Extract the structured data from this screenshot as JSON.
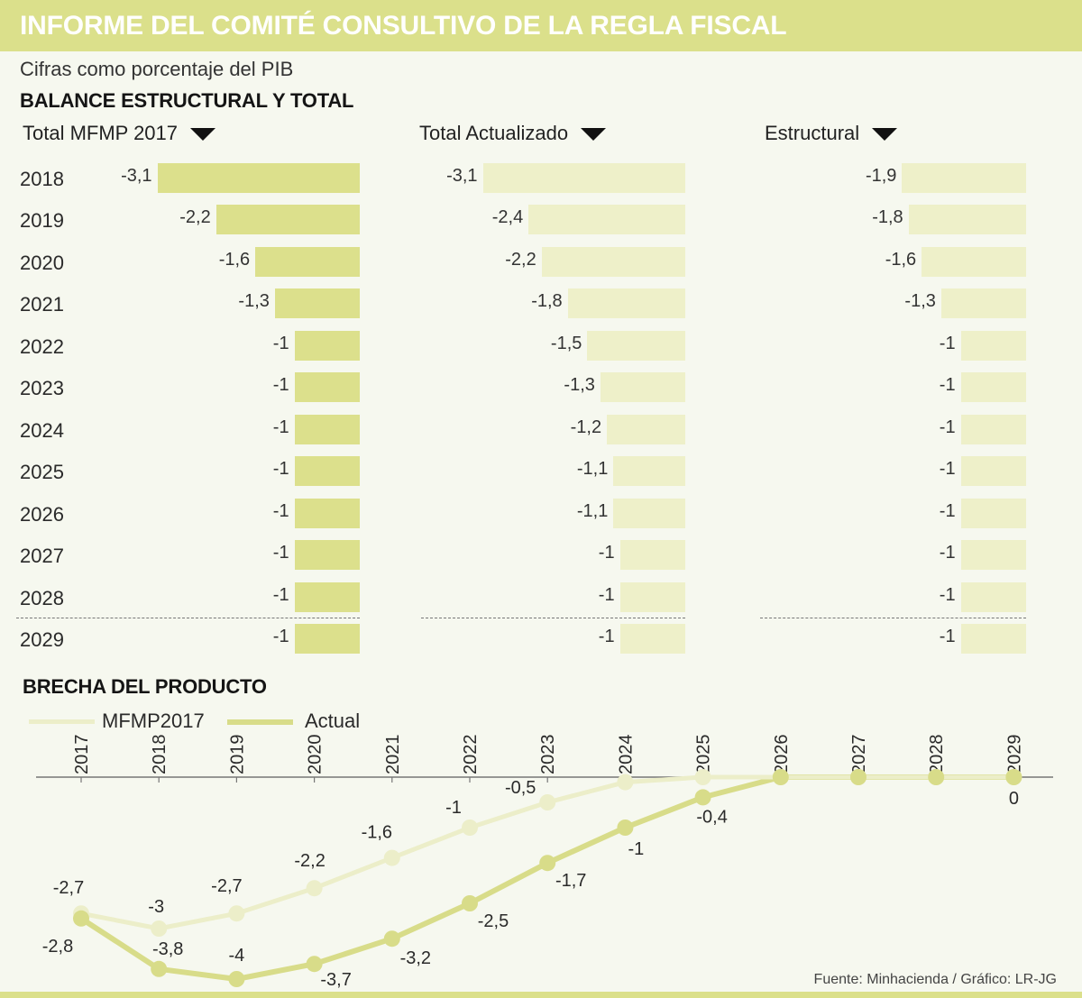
{
  "header": {
    "title": "INFORME DEL COMITÉ CONSULTIVO DE LA REGLA FISCAL",
    "subtitle": "Cifras como porcentaje del PIB"
  },
  "colors": {
    "band": "#dbe08b",
    "background": "#f6f8ef",
    "bar_dark": "#dce08c",
    "bar_light": "#eef0c9",
    "line_light": "#eceec9",
    "line_dark": "#d8dc89"
  },
  "footer": {
    "source": "Fuente: Minhacienda / Gráfico: LR-JG"
  },
  "chart_data": [
    {
      "type": "bar",
      "orientation": "horizontal",
      "title": "BALANCE ESTRUCTURAL Y TOTAL",
      "categories": [
        "2018",
        "2019",
        "2020",
        "2021",
        "2022",
        "2023",
        "2024",
        "2025",
        "2026",
        "2027",
        "2028",
        "2029"
      ],
      "series": [
        {
          "name": "Total MFMP 2017",
          "color": "#dce08c",
          "values": [
            -3.1,
            -2.2,
            -1.6,
            -1.3,
            -1,
            -1,
            -1,
            -1,
            -1,
            -1,
            -1,
            -1
          ],
          "labels": [
            "-3,1",
            "-2,2",
            "-1,6",
            "-1,3",
            "-1",
            "-1",
            "-1",
            "-1",
            "-1",
            "-1",
            "-1",
            "-1"
          ]
        },
        {
          "name": "Total Actualizado",
          "color": "#eef0c9",
          "values": [
            -3.1,
            -2.4,
            -2.2,
            -1.8,
            -1.5,
            -1.3,
            -1.2,
            -1.1,
            -1.1,
            -1,
            -1,
            -1
          ],
          "labels": [
            "-3,1",
            "-2,4",
            "-2,2",
            "-1,8",
            "-1,5",
            "-1,3",
            "-1,2",
            "-1,1",
            "-1,1",
            "-1",
            "-1",
            "-1"
          ]
        },
        {
          "name": "Estructural",
          "color": "#eef0c9",
          "values": [
            -1.9,
            -1.8,
            -1.6,
            -1.3,
            -1,
            -1,
            -1,
            -1,
            -1,
            -1,
            -1,
            -1
          ],
          "labels": [
            "-1,9",
            "-1,8",
            "-1,6",
            "-1,3",
            "-1",
            "-1",
            "-1",
            "-1",
            "-1",
            "-1",
            "-1",
            "-1"
          ]
        }
      ],
      "xlabel": "",
      "ylabel": "",
      "unit": "% del PIB"
    },
    {
      "type": "line",
      "title": "BRECHA DEL PRODUCTO",
      "categories": [
        "2017",
        "2018",
        "2019",
        "2020",
        "2021",
        "2022",
        "2023",
        "2024",
        "2025",
        "2026",
        "2027",
        "2028",
        "2029"
      ],
      "series": [
        {
          "name": "MFMP2017",
          "color": "#eceec9",
          "values": [
            -2.7,
            -3,
            -2.7,
            -2.2,
            -1.6,
            -1,
            -0.5,
            -0.1,
            0,
            0,
            0,
            0,
            0
          ],
          "labels": [
            "-2,7",
            "-3",
            "-2,7",
            "-2,2",
            "-1,6",
            "-1",
            "-0,5",
            null,
            null,
            null,
            null,
            null,
            null
          ]
        },
        {
          "name": "Actual",
          "color": "#d8dc89",
          "values": [
            -2.8,
            -3.8,
            -4,
            -3.7,
            -3.2,
            -2.5,
            -1.7,
            -1,
            -0.4,
            0,
            0,
            0,
            0
          ],
          "labels": [
            "-2,8",
            "-3,8",
            "-4",
            "-3,7",
            "-3,2",
            "-2,5",
            "-1,7",
            "-1",
            "-0,4",
            null,
            null,
            null,
            "0"
          ]
        }
      ],
      "xlabel": "",
      "ylabel": "",
      "ylim": [
        -4,
        0
      ],
      "legend": "top-left",
      "grid": false
    }
  ]
}
